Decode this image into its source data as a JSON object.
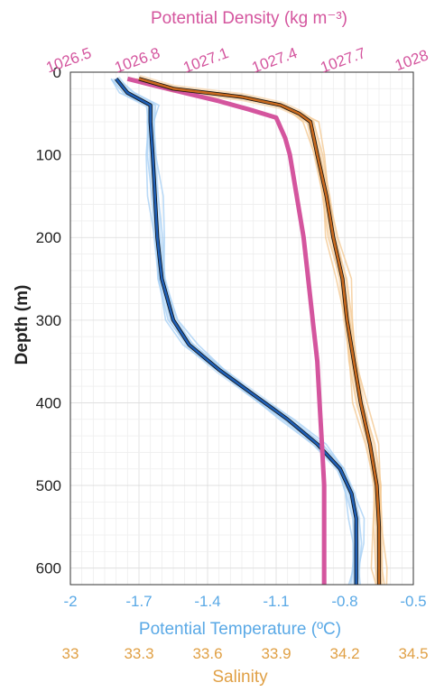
{
  "chart_data": {
    "type": "line",
    "ylabel": "Depth (m)",
    "ylim": [
      0,
      620
    ],
    "y_reversed": true,
    "y_ticks": [
      0,
      100,
      200,
      300,
      400,
      500,
      600
    ],
    "grid": true,
    "axes": {
      "density": {
        "label": "Potential Density (kg m⁻³)",
        "position": "top",
        "color": "#d4559e",
        "range": [
          1026.5,
          1028.0
        ],
        "ticks": [
          1026.5,
          1026.8,
          1027.1,
          1027.4,
          1027.7,
          1028
        ]
      },
      "temperature": {
        "label": "Potential Temperature (ºC)",
        "position": "bottom",
        "color": "#5aa9e6",
        "range": [
          -2,
          -0.5
        ],
        "ticks": [
          -2,
          -1.7,
          -1.4,
          -1.1,
          -0.8,
          -0.5
        ]
      },
      "salinity": {
        "label": "Salinity",
        "position": "bottom",
        "color": "#e0a045",
        "range": [
          33.0,
          34.5
        ],
        "ticks": [
          33,
          33.3,
          33.6,
          33.9,
          34.2,
          34.5
        ]
      }
    },
    "series": [
      {
        "axis": "temperature",
        "color": "#1f5fb5",
        "spread_color": "#a9d1f5",
        "depth": [
          8,
          25,
          40,
          60,
          100,
          150,
          200,
          250,
          300,
          330,
          360,
          390,
          420,
          450,
          480,
          510,
          540,
          570,
          600,
          620
        ],
        "values": [
          -1.8,
          -1.75,
          -1.65,
          -1.65,
          -1.64,
          -1.63,
          -1.62,
          -1.6,
          -1.55,
          -1.48,
          -1.35,
          -1.2,
          -1.05,
          -0.92,
          -0.82,
          -0.77,
          -0.75,
          -0.75,
          -0.75,
          -0.75
        ]
      },
      {
        "axis": "density",
        "color": "#d4559e",
        "depth": [
          8,
          15,
          25,
          35,
          45,
          55,
          80,
          100,
          150,
          200,
          250,
          300,
          350,
          400,
          450,
          500,
          550,
          600,
          620
        ],
        "values": [
          1026.75,
          1026.85,
          1027.0,
          1027.15,
          1027.28,
          1027.4,
          1027.44,
          1027.46,
          1027.49,
          1027.52,
          1027.54,
          1027.56,
          1027.58,
          1027.59,
          1027.6,
          1027.61,
          1027.61,
          1027.61,
          1027.61
        ]
      },
      {
        "axis": "salinity",
        "color": "#c96a1e",
        "spread_color": "#f4c993",
        "depth": [
          8,
          20,
          30,
          40,
          50,
          60,
          100,
          150,
          200,
          250,
          300,
          350,
          400,
          450,
          500,
          550,
          600,
          620
        ],
        "values": [
          33.3,
          33.45,
          33.75,
          33.92,
          34.0,
          34.05,
          34.08,
          34.12,
          34.15,
          34.19,
          34.21,
          34.24,
          34.27,
          34.31,
          34.34,
          34.35,
          34.35,
          34.35
        ]
      }
    ]
  }
}
